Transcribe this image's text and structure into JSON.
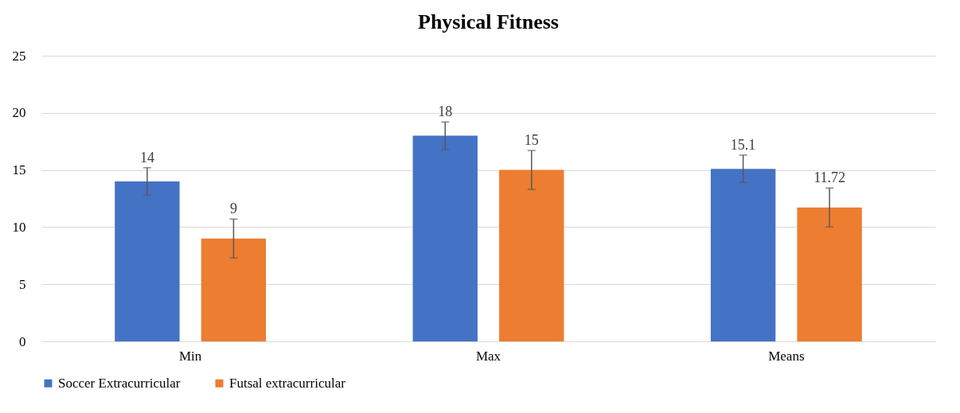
{
  "chart_data": {
    "type": "bar",
    "title": "Physical Fitness",
    "categories": [
      "Min",
      "Max",
      "Means"
    ],
    "series": [
      {
        "name": "Soccer Extracurricular",
        "color": "#4472c4",
        "values": [
          14,
          18,
          15.1
        ],
        "errors": [
          1.2,
          1.2,
          1.2
        ]
      },
      {
        "name": "Futsal extracurricular",
        "color": "#ed7d31",
        "values": [
          9,
          15,
          11.72
        ],
        "errors": [
          1.7,
          1.7,
          1.7
        ]
      }
    ],
    "ylim": [
      0,
      25
    ],
    "yticks": [
      0,
      5,
      10,
      15,
      20,
      25
    ],
    "grid": "y",
    "legend": "bottom",
    "data_labels": true
  }
}
